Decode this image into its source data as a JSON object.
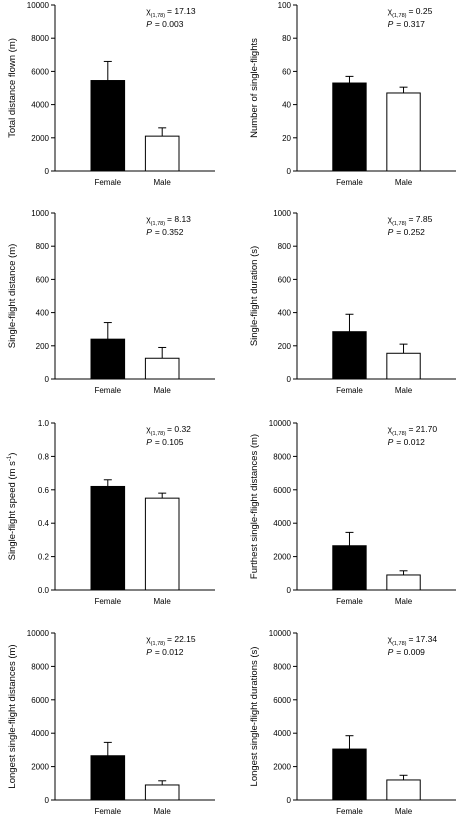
{
  "colors": {
    "female_fill": "#000000",
    "male_fill": "#ffffff",
    "stroke": "#000000"
  },
  "chart_data": [
    {
      "type": "bar",
      "categories": [
        "Female",
        "Male"
      ],
      "values": [
        5450,
        2100
      ],
      "errors": [
        1150,
        500
      ],
      "ylabel": "Total distance flown (m)",
      "ylim": [
        0,
        10000
      ],
      "yticks": [
        "0",
        "2000",
        "4000",
        "6000",
        "8000",
        "10000"
      ],
      "stat_symbol": "χ",
      "stat_sub": "(1,78)",
      "stat_value": "= 17.13",
      "p_label": "P",
      "p_value": "= 0.003"
    },
    {
      "type": "bar",
      "categories": [
        "Female",
        "Male"
      ],
      "values": [
        53,
        47
      ],
      "errors": [
        4,
        3.5
      ],
      "ylabel": "Number of single-flights",
      "ylim": [
        0,
        100
      ],
      "yticks": [
        "0",
        "20",
        "40",
        "60",
        "80",
        "100"
      ],
      "stat_symbol": "χ",
      "stat_sub": "(1,78)",
      "stat_value": "= 0.25",
      "p_label": "P",
      "p_value": "= 0.317"
    },
    {
      "type": "bar",
      "categories": [
        "Female",
        "Male"
      ],
      "values": [
        240,
        125
      ],
      "errors": [
        100,
        65
      ],
      "ylabel": "Single-flight distance (m)",
      "ylim": [
        0,
        1000
      ],
      "yticks": [
        "0",
        "200",
        "400",
        "600",
        "800",
        "1000"
      ],
      "stat_symbol": "χ",
      "stat_sub": "(1,78)",
      "stat_value": "= 8.13",
      "p_label": "P",
      "p_value": "= 0.352"
    },
    {
      "type": "bar",
      "categories": [
        "Female",
        "Male"
      ],
      "values": [
        285,
        155
      ],
      "errors": [
        105,
        55
      ],
      "ylabel": "Single-flight duration (s)",
      "ylim": [
        0,
        1000
      ],
      "yticks": [
        "0",
        "200",
        "400",
        "600",
        "800",
        "1000"
      ],
      "stat_symbol": "χ",
      "stat_sub": "(1,78)",
      "stat_value": "= 7.85",
      "p_label": "P",
      "p_value": "= 0.252"
    },
    {
      "type": "bar",
      "categories": [
        "Female",
        "Male"
      ],
      "values": [
        0.62,
        0.55
      ],
      "errors": [
        0.04,
        0.03
      ],
      "ylabel": "Single-flight speed (m s",
      "ylabel_sup": "-1",
      "ylabel_end": ")",
      "ylim": [
        0,
        1.0
      ],
      "yticks": [
        "0.0",
        "0.2",
        "0.4",
        "0.6",
        "0.8",
        "1.0"
      ],
      "stat_symbol": "χ",
      "stat_sub": "(1,78)",
      "stat_value": "= 0.32",
      "p_label": "P",
      "p_value": "= 0.105"
    },
    {
      "type": "bar",
      "categories": [
        "Female",
        "Male"
      ],
      "values": [
        2650,
        900
      ],
      "errors": [
        800,
        250
      ],
      "ylabel": "Furthest single-flight distances (m)",
      "ylim": [
        0,
        10000
      ],
      "yticks": [
        "0",
        "2000",
        "4000",
        "6000",
        "8000",
        "10000"
      ],
      "stat_symbol": "χ",
      "stat_sub": "(1,78)",
      "stat_value": "= 21.70",
      "p_label": "P",
      "p_value": "= 0.012"
    },
    {
      "type": "bar",
      "categories": [
        "Female",
        "Male"
      ],
      "values": [
        2650,
        900
      ],
      "errors": [
        800,
        250
      ],
      "ylabel": "Longest single-flight distances (m)",
      "ylim": [
        0,
        10000
      ],
      "yticks": [
        "0",
        "2000",
        "4000",
        "6000",
        "8000",
        "10000"
      ],
      "stat_symbol": "χ",
      "stat_sub": "(1,78)",
      "stat_value": "= 22.15",
      "p_label": "P",
      "p_value": "= 0.012"
    },
    {
      "type": "bar",
      "categories": [
        "Female",
        "Male"
      ],
      "values": [
        3050,
        1200
      ],
      "errors": [
        800,
        280
      ],
      "ylabel": "Longest single-flight durations (s)",
      "ylim": [
        0,
        10000
      ],
      "yticks": [
        "0",
        "2000",
        "4000",
        "6000",
        "8000",
        "10000"
      ],
      "stat_symbol": "χ",
      "stat_sub": "(1,78)",
      "stat_value": "= 17.34",
      "p_label": "P",
      "p_value": "= 0.009"
    }
  ]
}
